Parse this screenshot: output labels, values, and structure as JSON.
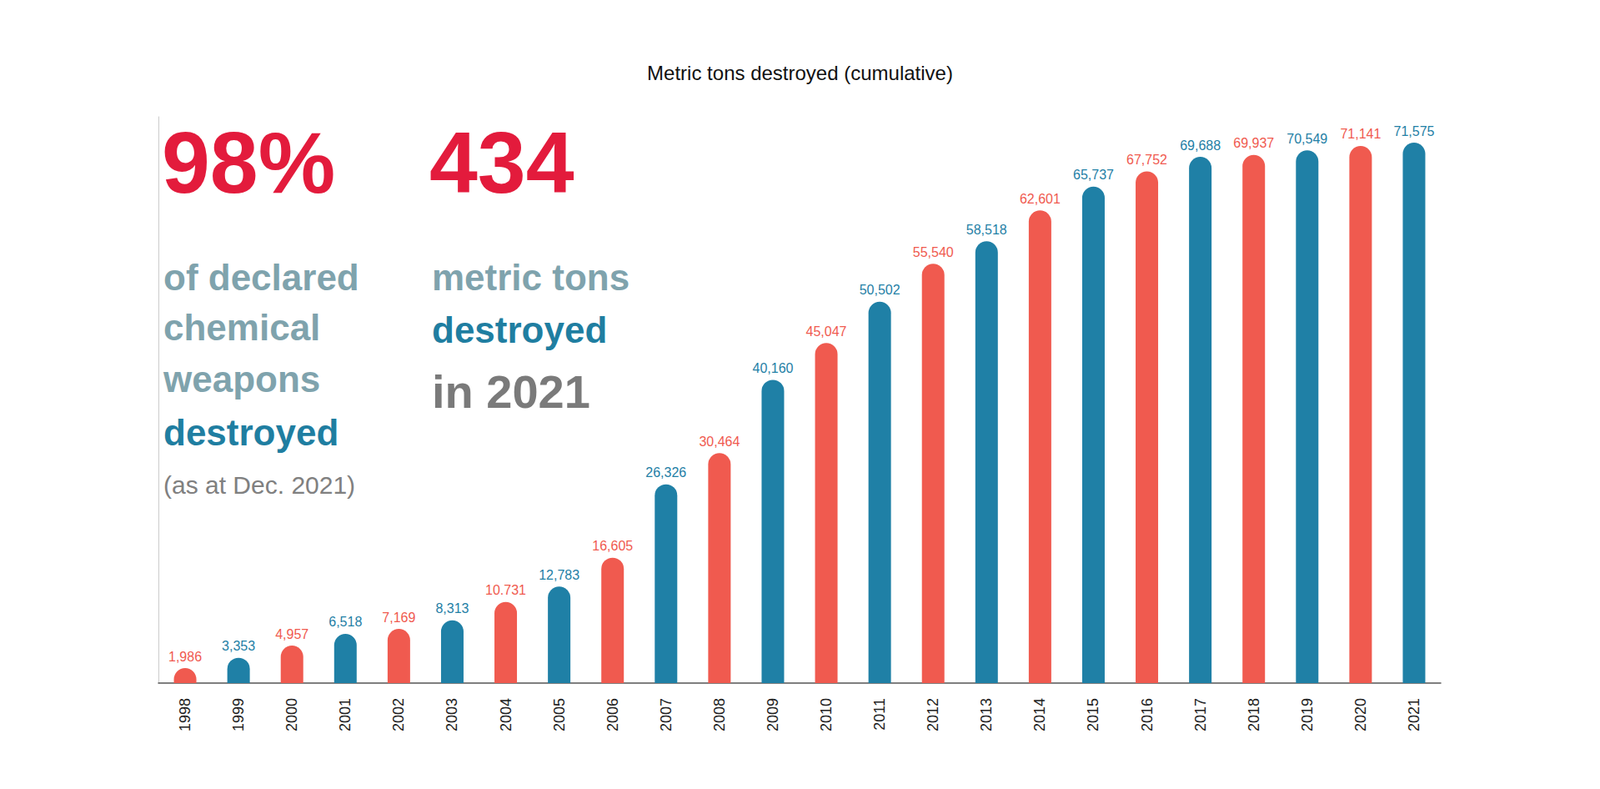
{
  "chart_data": {
    "type": "bar",
    "title": "Metric tons destroyed (cumulative)",
    "categories": [
      "1998",
      "1999",
      "2000",
      "2001",
      "2002",
      "2003",
      "2004",
      "2005",
      "2006",
      "2007",
      "2008",
      "2009",
      "2010",
      "2011",
      "2012",
      "2013",
      "2014",
      "2015",
      "2016",
      "2017",
      "2018",
      "2019",
      "2020",
      "2021"
    ],
    "values": [
      1986,
      3353,
      4957,
      6518,
      7169,
      8313,
      10731,
      12783,
      16605,
      26326,
      30464,
      40160,
      45047,
      50502,
      55540,
      58518,
      62601,
      65737,
      67752,
      69688,
      69937,
      70549,
      71141,
      71575
    ],
    "value_labels": [
      "1,986",
      "3,353",
      "4,957",
      "6,518",
      "7,169",
      "8,313",
      "10.731",
      "12,783",
      "16,605",
      "26,326",
      "30,464",
      "40,160",
      "45,047",
      "50,502",
      "55,540",
      "58,518",
      "62,601",
      "65,737",
      "67,752",
      "69,688",
      "69,937",
      "70,549",
      "71,141",
      "71,575"
    ],
    "colors": [
      "#f05a4f",
      "#1f80a6",
      "#f05a4f",
      "#1f80a6",
      "#f05a4f",
      "#1f80a6",
      "#f05a4f",
      "#1f80a6",
      "#f05a4f",
      "#1f80a6",
      "#f05a4f",
      "#1f80a6",
      "#f05a4f",
      "#1f80a6",
      "#f05a4f",
      "#1f80a6",
      "#f05a4f",
      "#1f80a6",
      "#f05a4f",
      "#1f80a6",
      "#f05a4f",
      "#1f80a6",
      "#f05a4f",
      "#1f80a6"
    ],
    "ylim": [
      0,
      75000
    ],
    "grid": false,
    "data_labels": true,
    "tick_labels": "x",
    "annotations": [
      "98%",
      "of declared",
      "chemical",
      "weapons",
      "destroyed",
      "(as at Dec. 2021)",
      "434",
      "metric tons",
      "destroyed",
      "in 2021"
    ]
  }
}
